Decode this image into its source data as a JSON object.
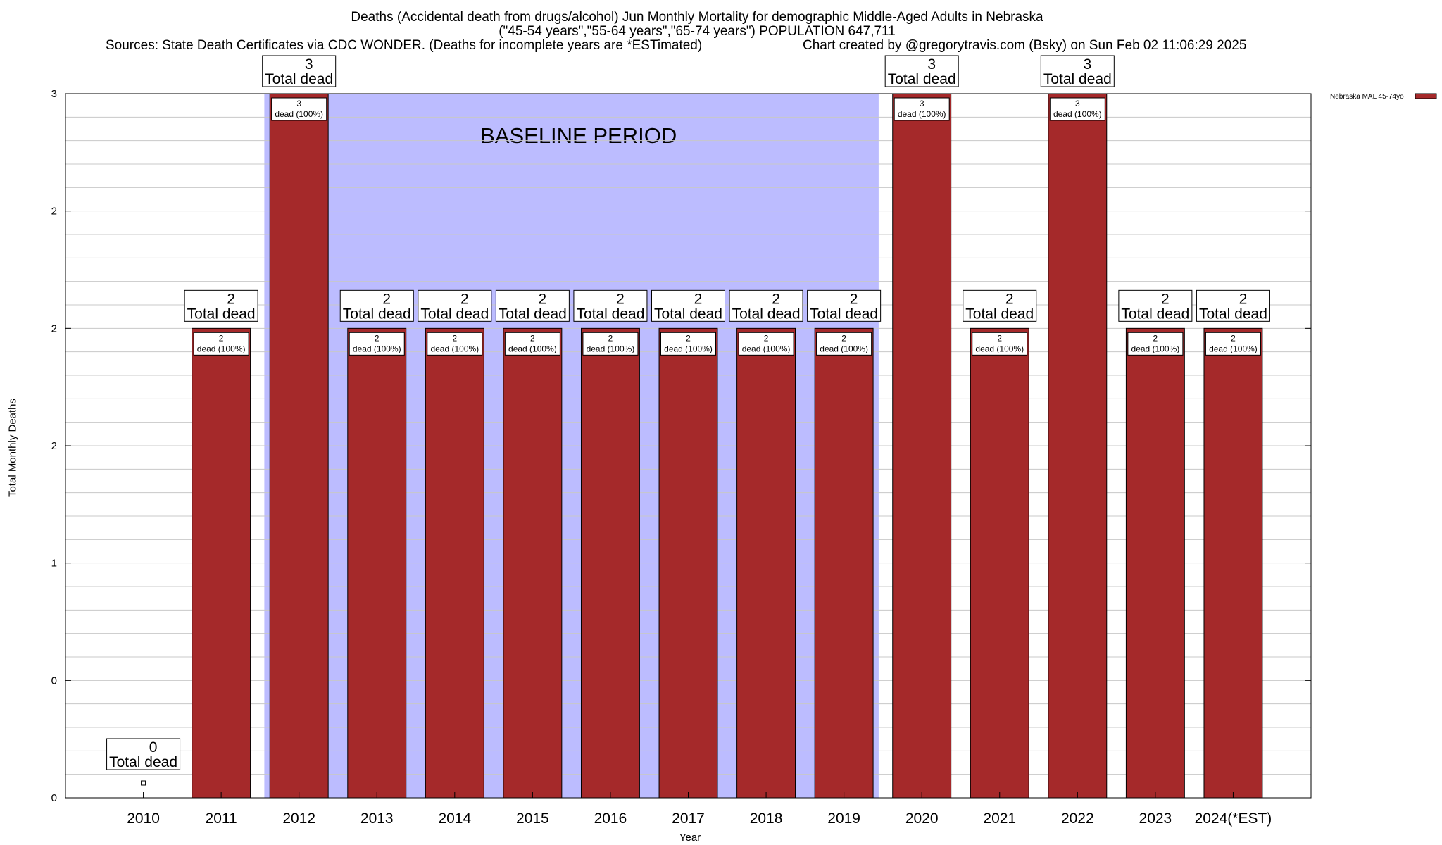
{
  "chart_data": {
    "type": "bar",
    "title_lines": [
      "Deaths (Accidental death from drugs/alcohol) Jun Monthly Mortality for demographic Middle-Aged Adults in Nebraska",
      "(\"45-54 years\",\"55-64 years\",\"65-74 years\") POPULATION 647,711"
    ],
    "source_text": "Sources: State Death Certificates via CDC WONDER. (Deaths for incomplete years are *ESTimated)",
    "credit_text": "Chart created by @gregorytravis.com (Bsky) on Sun Feb 02 11:06:29 2025",
    "xlabel": "Year",
    "ylabel": "Total Monthly Deaths",
    "categories": [
      "2010",
      "2011",
      "2012",
      "2013",
      "2014",
      "2015",
      "2016",
      "2017",
      "2018",
      "2019",
      "2020",
      "2021",
      "2022",
      "2023",
      "2024(*EST)"
    ],
    "series": [
      {
        "name": "Nebraska MAL 45-74yo",
        "color": "#a5292a",
        "values": [
          0,
          2,
          3,
          2,
          2,
          2,
          2,
          2,
          2,
          2,
          3,
          2,
          3,
          2,
          2
        ]
      }
    ],
    "bar_label_suffix": "Total dead",
    "inner_label_suffix": "dead (100%)",
    "ylim": [
      0,
      3
    ],
    "yticks": [
      {
        "value": 0,
        "label": "0"
      },
      {
        "value": 0.5,
        "label": "0"
      },
      {
        "value": 1,
        "label": "1"
      },
      {
        "value": 1.5,
        "label": "2"
      },
      {
        "value": 2,
        "label": "2"
      },
      {
        "value": 2.5,
        "label": "2"
      },
      {
        "value": 3,
        "label": "3"
      }
    ],
    "baseline": {
      "label": "BASELINE PERIOD",
      "from": "2012",
      "to": "2019",
      "color": "#bcbcff"
    },
    "grid": true,
    "legend_position": "top-right"
  }
}
